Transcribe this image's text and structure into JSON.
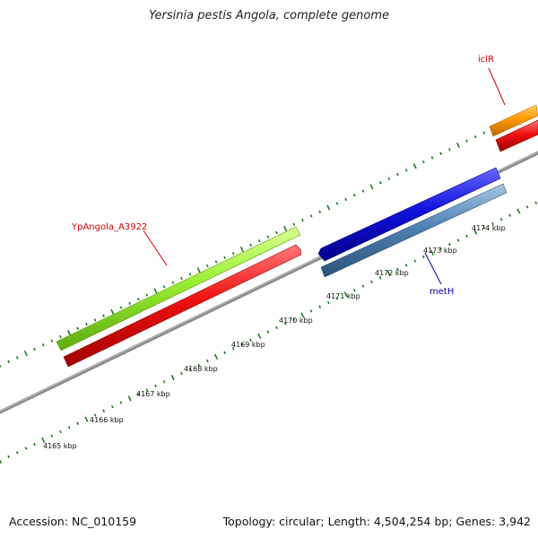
{
  "title": "Yersinia pestis Angola, complete genome",
  "footer": {
    "accession": "Accession: NC_010159",
    "summary": "Topology: circular; Length: 4,504,254 bp; Genes: 3,942"
  },
  "scale": {
    "unit": "kbp",
    "ticks": [
      "4165 kbp",
      "4166 kbp",
      "4167 kbp",
      "4168 kbp",
      "4169 kbp",
      "4170 kbp",
      "4171 kbp",
      "4172 kbp",
      "4173 kbp",
      "4174 kbp"
    ]
  },
  "features": [
    {
      "id": "ypangola-a3922-gene",
      "label": "YpAngola_A3922",
      "color": "#99ee33",
      "track": "outer-forward"
    },
    {
      "id": "ypangola-a3922-cds",
      "label": "",
      "color": "#ee1111",
      "track": "inner-forward"
    },
    {
      "id": "metH-gene",
      "label": "",
      "color": "#1111dd",
      "track": "inner-reverse"
    },
    {
      "id": "metH-cds",
      "label": "metH",
      "color": "#4f82b5",
      "track": "outer-reverse"
    },
    {
      "id": "iclR-gene",
      "label": "iclR",
      "color": "#ff9900",
      "track": "outer-forward"
    },
    {
      "id": "iclR-cds",
      "label": "",
      "color": "#ee1111",
      "track": "inner-forward"
    }
  ],
  "colors": {
    "backbone": "#8a8a8a",
    "tick": "#1a7a1a",
    "label_forward": "#cc0000",
    "label_reverse": "#0000aa"
  }
}
